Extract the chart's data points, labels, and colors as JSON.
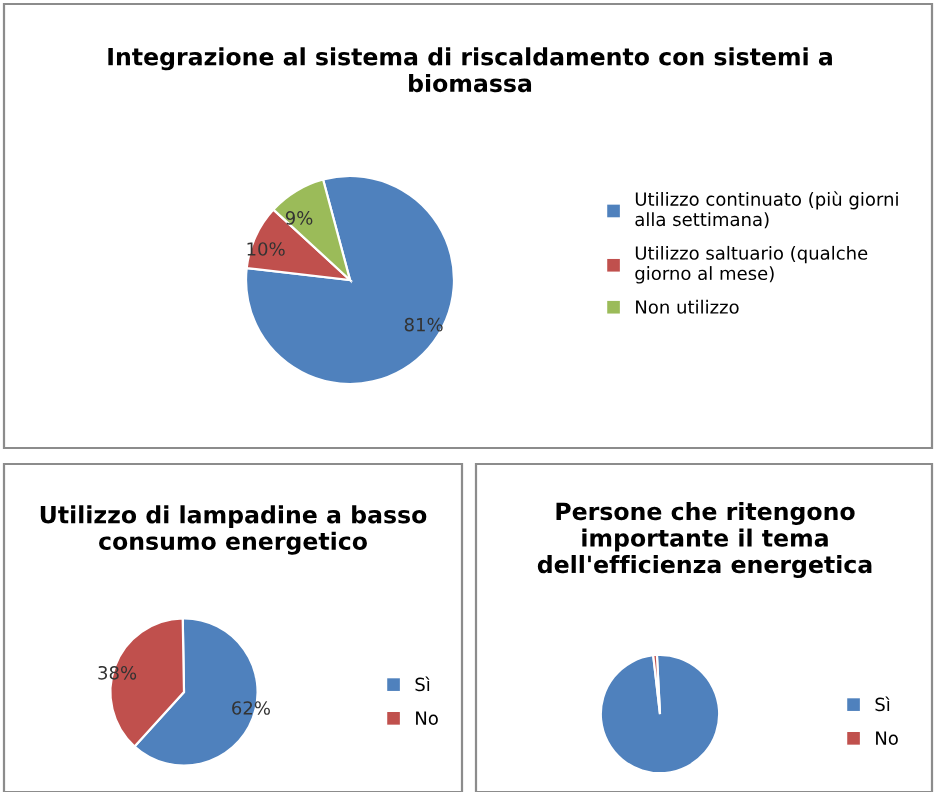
{
  "chart_data": [
    {
      "type": "pie",
      "title": "Integrazione al sistema di riscaldamento con sistemi a biomassa",
      "categories": [
        "Utilizzo continuato (più giorni alla settimana)",
        "Utilizzo saltuario (qualche giorno al mese)",
        "Non utilizzo"
      ],
      "values": [
        81,
        10,
        9
      ],
      "colors": [
        "#4f81bd",
        "#c0504d",
        "#9bbb59"
      ],
      "value_labels": [
        "81%",
        "10%",
        "9%"
      ],
      "legend": "right"
    },
    {
      "type": "pie",
      "title": "Utilizzo di lampadine a basso consumo energetico",
      "categories": [
        "Sì",
        "No"
      ],
      "values": [
        62,
        38
      ],
      "colors": [
        "#4f81bd",
        "#c0504d"
      ],
      "value_labels": [
        "62%",
        "38%"
      ],
      "legend": "right"
    },
    {
      "type": "pie",
      "title": "Persone che ritengono importante il tema dell'efficienza energetica",
      "categories": [
        "Sì",
        "No"
      ],
      "values": [
        99,
        1
      ],
      "colors": [
        "#4f81bd",
        "#c0504d"
      ],
      "legend": "right"
    }
  ]
}
